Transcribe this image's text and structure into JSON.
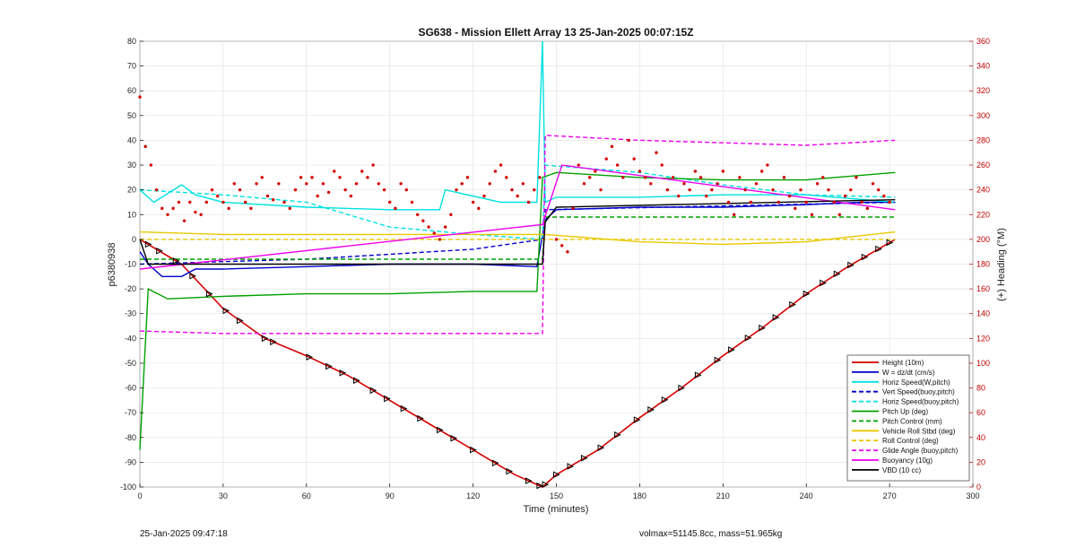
{
  "chart_data": {
    "type": "line",
    "title": "SG638 - Mission Ellett Array 13 25-Jan-2025 00:07:15Z",
    "xlabel": "Time (minutes)",
    "ylabel_left": "p6380938",
    "ylabel_right": "(+) Heading (°M)",
    "xlim": [
      0,
      300
    ],
    "ylim_left": [
      -100,
      80
    ],
    "ylim_right": [
      0,
      360
    ],
    "x_ticks": [
      0,
      30,
      60,
      90,
      120,
      150,
      180,
      210,
      240,
      270,
      300
    ],
    "y_ticks_left": [
      -100,
      -90,
      -80,
      -70,
      -60,
      -50,
      -40,
      -30,
      -20,
      -10,
      0,
      10,
      20,
      30,
      40,
      50,
      60,
      70,
      80
    ],
    "y_ticks_right": [
      0,
      20,
      40,
      60,
      80,
      100,
      120,
      140,
      160,
      180,
      200,
      220,
      240,
      260,
      280,
      300,
      320,
      340,
      360
    ],
    "grid": true,
    "legend_position": "bottom-right",
    "series": [
      {
        "name": "Height (10m)",
        "color": "#d40000",
        "style": "solid",
        "x": [
          0,
          15,
          30,
          45,
          60,
          75,
          90,
          105,
          120,
          135,
          145,
          150,
          165,
          180,
          195,
          210,
          225,
          240,
          255,
          272
        ],
        "y": [
          0,
          -10,
          -28,
          -40,
          -47,
          -55,
          -65,
          -75,
          -85,
          -95,
          -100,
          -95,
          -85,
          -72,
          -60,
          -47,
          -35,
          -22,
          -11,
          0
        ]
      },
      {
        "name": "W = dz/dt (cm/s)",
        "color": "#0000cc",
        "style": "solid",
        "x": [
          0,
          3,
          8,
          15,
          20,
          30,
          60,
          90,
          120,
          143,
          146,
          150,
          180,
          210,
          240,
          260,
          272
        ],
        "y": [
          -5,
          -10,
          -15,
          -15,
          -12,
          -12,
          -11,
          -10,
          -10,
          -11,
          8,
          12,
          13,
          13,
          14,
          15,
          15
        ]
      },
      {
        "name": "Horiz Speed(W,pitch)",
        "color": "#00e0e0",
        "style": "solid",
        "x": [
          0,
          5,
          15,
          20,
          30,
          60,
          90,
          108,
          110,
          130,
          143,
          145,
          146,
          150,
          180,
          210,
          240,
          272
        ],
        "y": [
          20,
          15,
          22,
          18,
          15,
          13,
          12,
          12,
          20,
          15,
          15,
          80,
          15,
          17,
          17,
          18,
          18,
          15
        ]
      },
      {
        "name": "Vert Speed(buoy,pitch)",
        "color": "#0000cc",
        "style": "dashed",
        "x": [
          0,
          30,
          60,
          90,
          120,
          145,
          146,
          272
        ],
        "y": [
          -10,
          -9,
          -8,
          -6,
          -4,
          0,
          12,
          15
        ]
      },
      {
        "name": "Horiz Speed(buoy,pitch)",
        "color": "#00e0e0",
        "style": "dashed",
        "x": [
          0,
          30,
          60,
          90,
          120,
          145,
          146,
          180,
          210,
          240,
          272
        ],
        "y": [
          20,
          18,
          15,
          5,
          2,
          0,
          30,
          27,
          22,
          18,
          17
        ]
      },
      {
        "name": "Pitch Up (deg)",
        "color": "#00a000",
        "style": "solid",
        "x": [
          0,
          3,
          10,
          30,
          60,
          90,
          120,
          143,
          145,
          150,
          180,
          210,
          240,
          272
        ],
        "y": [
          -85,
          -20,
          -24,
          -23,
          -22,
          -22,
          -21,
          -21,
          25,
          27,
          25,
          24,
          24,
          27
        ]
      },
      {
        "name": "Pitch Control (mm)",
        "color": "#00a000",
        "style": "dashed",
        "x": [
          0,
          145,
          146,
          272
        ],
        "y": [
          -8,
          -8,
          9,
          9
        ]
      },
      {
        "name": "Vehicle Roll Stbd (deg)",
        "color": "#e8c800",
        "style": "solid",
        "x": [
          0,
          30,
          60,
          90,
          120,
          145,
          146,
          180,
          210,
          240,
          272
        ],
        "y": [
          3,
          2,
          2,
          2,
          2,
          2,
          2,
          -1,
          -2,
          -1,
          3
        ]
      },
      {
        "name": "Roll Control (deg)",
        "color": "#e8c800",
        "style": "dashed",
        "x": [
          0,
          145,
          146,
          272
        ],
        "y": [
          0,
          0,
          0,
          0
        ]
      },
      {
        "name": "Glide Angle (buoy,pitch)",
        "color": "#ee00ee",
        "style": "dashed",
        "x": [
          0,
          30,
          60,
          90,
          120,
          145,
          146,
          180,
          210,
          240,
          272
        ],
        "y": [
          -37,
          -38,
          -38,
          -38,
          -38,
          -38,
          42,
          40,
          39,
          38,
          40
        ]
      },
      {
        "name": "Buoyancy (10g)",
        "color": "#ee00ee",
        "style": "solid",
        "x": [
          0,
          145,
          152,
          272
        ],
        "y": [
          -12,
          6,
          30,
          12
        ]
      },
      {
        "name": "VBD (10 cc)",
        "color": "#000000",
        "style": "solid",
        "x": [
          0,
          3,
          145,
          146,
          150,
          272
        ],
        "y": [
          0,
          -10,
          -10,
          7,
          13,
          16
        ]
      }
    ],
    "heading_points": {
      "color": "#d40000",
      "x": [
        0,
        2,
        4,
        6,
        8,
        10,
        12,
        14,
        16,
        18,
        20,
        22,
        24,
        26,
        28,
        30,
        32,
        34,
        36,
        38,
        40,
        42,
        44,
        46,
        48,
        50,
        52,
        54,
        56,
        58,
        60,
        62,
        64,
        66,
        68,
        70,
        72,
        74,
        76,
        78,
        80,
        82,
        84,
        86,
        88,
        90,
        92,
        94,
        96,
        98,
        100,
        102,
        104,
        106,
        108,
        110,
        112,
        114,
        116,
        118,
        120,
        122,
        124,
        126,
        128,
        130,
        132,
        134,
        136,
        138,
        140,
        142,
        144,
        150,
        152,
        154,
        156,
        158,
        160,
        162,
        164,
        166,
        168,
        170,
        172,
        174,
        176,
        178,
        180,
        182,
        184,
        186,
        188,
        190,
        192,
        194,
        196,
        198,
        200,
        202,
        204,
        206,
        208,
        210,
        212,
        214,
        216,
        218,
        220,
        222,
        224,
        226,
        228,
        230,
        232,
        234,
        236,
        238,
        240,
        242,
        244,
        246,
        248,
        250,
        252,
        254,
        256,
        258,
        260,
        262,
        264,
        266,
        268,
        270
      ],
      "y": [
        315,
        275,
        260,
        240,
        225,
        220,
        225,
        230,
        215,
        230,
        222,
        220,
        230,
        240,
        235,
        230,
        225,
        245,
        240,
        230,
        225,
        245,
        250,
        235,
        232,
        245,
        230,
        225,
        240,
        250,
        245,
        250,
        235,
        245,
        238,
        255,
        250,
        240,
        235,
        245,
        255,
        250,
        260,
        245,
        240,
        230,
        225,
        245,
        240,
        230,
        220,
        215,
        210,
        205,
        200,
        210,
        220,
        240,
        245,
        250,
        230,
        225,
        235,
        245,
        255,
        260,
        250,
        240,
        235,
        245,
        230,
        240,
        250,
        200,
        195,
        190,
        225,
        260,
        245,
        250,
        255,
        240,
        265,
        275,
        260,
        250,
        280,
        265,
        255,
        250,
        245,
        270,
        260,
        240,
        250,
        235,
        245,
        240,
        255,
        250,
        235,
        240,
        245,
        255,
        230,
        220,
        250,
        240,
        230,
        245,
        255,
        260,
        240,
        230,
        250,
        235,
        225,
        240,
        230,
        220,
        245,
        250,
        240,
        230,
        220,
        235,
        240,
        250,
        230,
        225,
        245,
        240,
        235,
        230
      ]
    },
    "dive_markers": {
      "x": [
        3,
        7,
        13,
        19,
        25,
        31,
        36,
        45,
        48,
        61,
        68,
        73,
        78,
        84,
        89,
        95,
        101,
        108,
        113,
        120,
        128,
        133,
        140,
        144,
        146,
        150,
        155,
        160,
        166,
        172,
        179,
        184,
        189,
        195,
        201,
        208,
        213,
        219,
        224,
        229,
        235,
        240,
        246,
        251,
        256,
        261,
        266,
        270
      ]
    }
  },
  "footer": {
    "left": "25-Jan-2025 09:47:18",
    "right": "volmax=51145.8cc, mass=51.965kg"
  }
}
